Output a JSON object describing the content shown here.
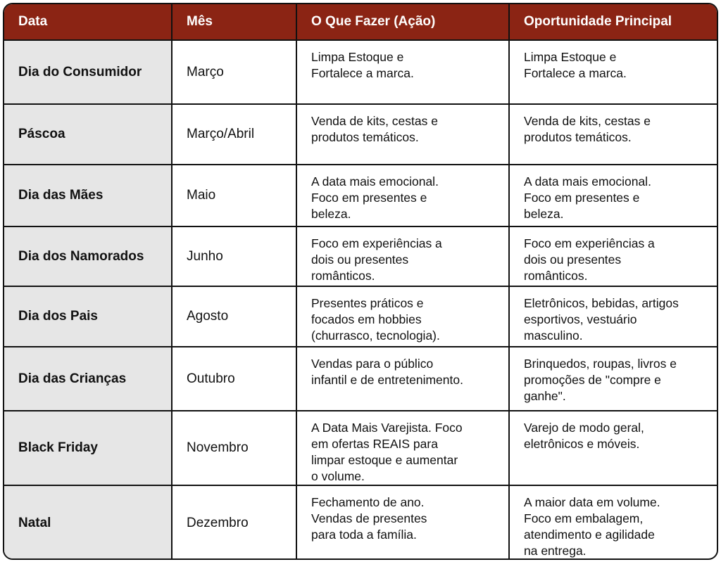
{
  "table": {
    "headers": [
      "Data",
      "Mês",
      "O Que Fazer (Ação)",
      "Oportunidade Principal"
    ],
    "header_color": "#8b2414",
    "rows": [
      {
        "data": "Dia do Consumidor",
        "mes": "Março",
        "acao": "Limpa Estoque e\nFortalece a marca.",
        "oportunidade": "Limpa Estoque e\nFortalece a marca."
      },
      {
        "data": "Páscoa",
        "mes": "Março/Abril",
        "acao": "Venda de kits, cestas e\nprodutos temáticos.",
        "oportunidade": "Venda de kits, cestas e\nprodutos temáticos."
      },
      {
        "data": "Dia das Mães",
        "mes": "Maio",
        "acao": "A data mais emocional.\nFoco em presentes e\nbeleza.",
        "oportunidade": "A data mais emocional.\nFoco em presentes e\nbeleza."
      },
      {
        "data": "Dia dos Namorados",
        "mes": "Junho",
        "acao": "Foco em experiências a\ndois ou presentes\nromânticos.",
        "oportunidade": "Foco em experiências a\ndois ou presentes\nromânticos."
      },
      {
        "data": "Dia dos Pais",
        "mes": "Agosto",
        "acao": "Presentes práticos e\nfocados em hobbies\n(churrasco, tecnologia).",
        "oportunidade": "Eletrônicos, bebidas, artigos\nesportivos, vestuário\nmasculino."
      },
      {
        "data": "Dia das Crianças",
        "mes": "Outubro",
        "acao": "Vendas para o público\ninfantil e de entretenimento.",
        "oportunidade": "Brinquedos, roupas, livros e\npromoções de \"compre e\nganhe\"."
      },
      {
        "data": "Black Friday",
        "mes": "Novembro",
        "acao": "A Data Mais Varejista. Foco\nem ofertas REAIS para\nlimpar estoque e aumentar\no volume.",
        "oportunidade": "Varejo de modo geral,\neletrônicos e móveis."
      },
      {
        "data": "Natal",
        "mes": "Dezembro",
        "acao": "Fechamento de ano.\nVendas de presentes\npara toda a família.",
        "oportunidade": "A maior data em volume.\nFoco em embalagem,\natendimento e agilidade\nna entrega."
      }
    ]
  }
}
